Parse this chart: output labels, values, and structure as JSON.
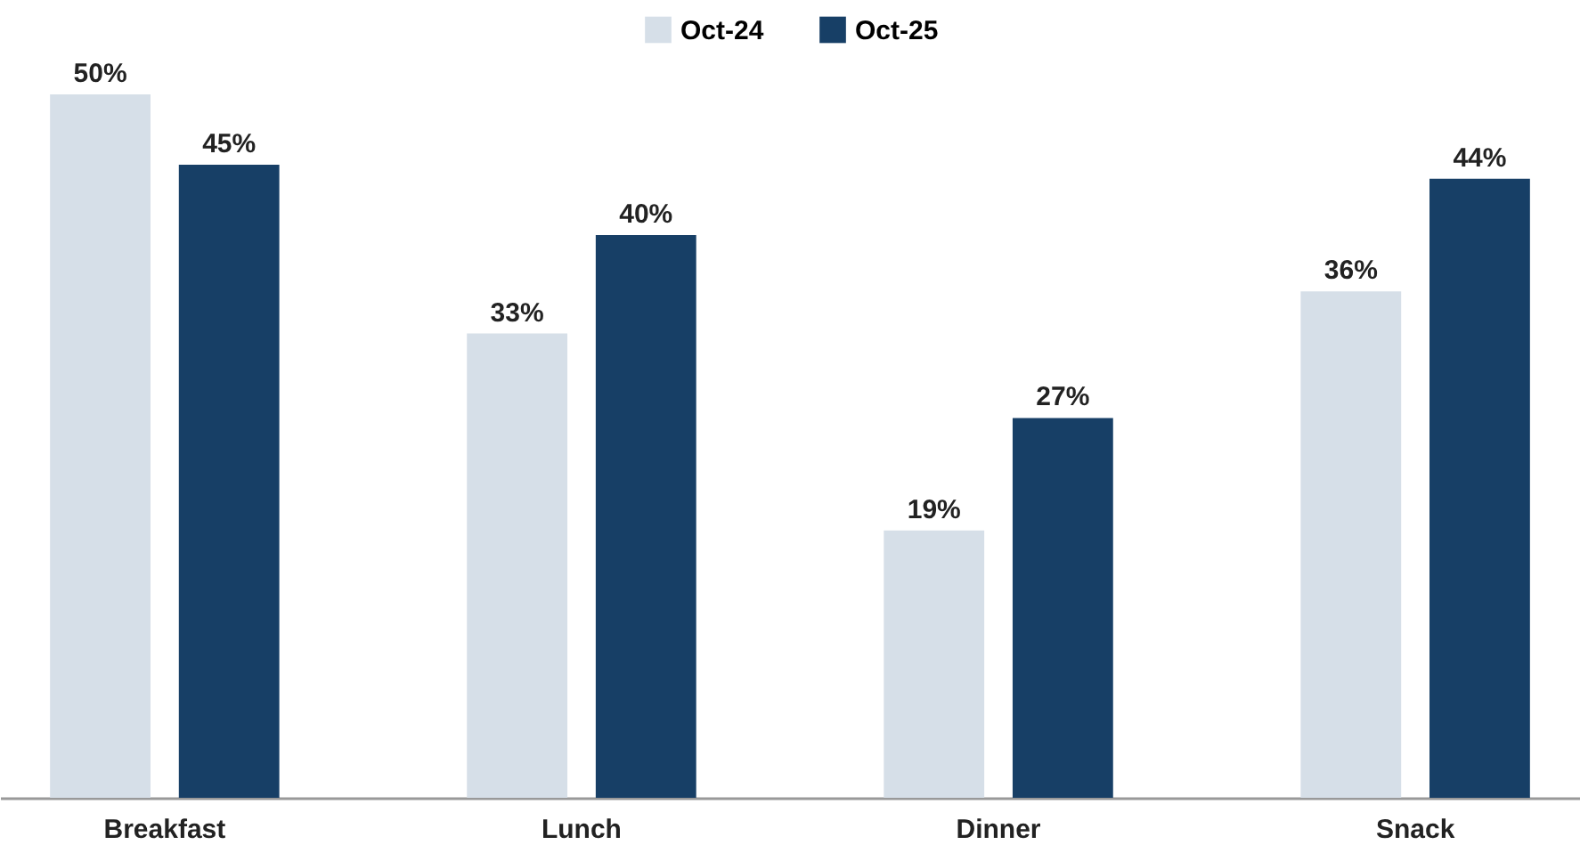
{
  "chart_data": {
    "type": "bar",
    "categories": [
      "Breakfast",
      "Lunch",
      "Dinner",
      "Snack"
    ],
    "series": [
      {
        "name": "Oct-24",
        "color": "#d6dfe8",
        "values": [
          50,
          33,
          19,
          36
        ],
        "value_labels": [
          "50%",
          "33%",
          "19%",
          "36%"
        ]
      },
      {
        "name": "Oct-25",
        "color": "#173f66",
        "values": [
          45,
          40,
          27,
          44
        ],
        "value_labels": [
          "45%",
          "40%",
          "27%",
          "44%"
        ]
      }
    ],
    "legend": "top",
    "grid": false
  }
}
